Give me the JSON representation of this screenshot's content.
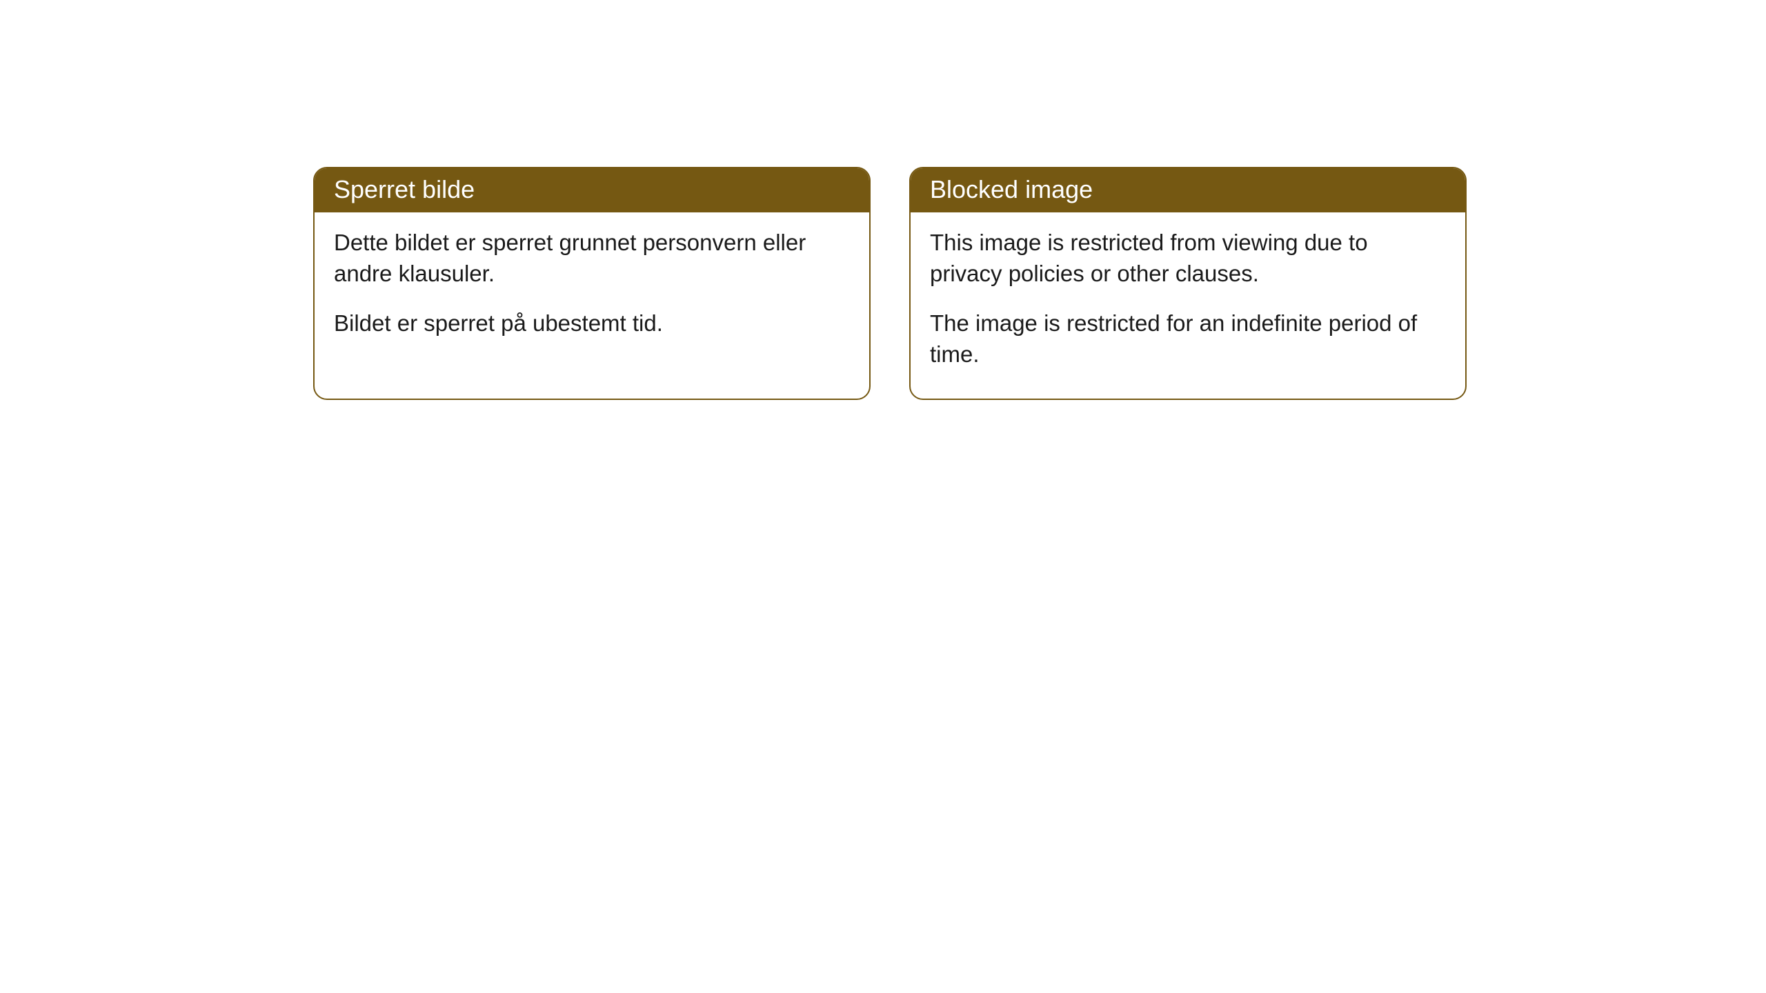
{
  "cards": [
    {
      "title": "Sperret bilde",
      "paragraph1": "Dette bildet er sperret grunnet personvern eller andre klausuler.",
      "paragraph2": "Bildet er sperret på ubestemt tid."
    },
    {
      "title": "Blocked image",
      "paragraph1": "This image is restricted from viewing due to privacy policies or other clauses.",
      "paragraph2": "The image is restricted for an indefinite period of time."
    }
  ],
  "styling": {
    "header_background": "#755812",
    "header_text_color": "#ffffff",
    "border_color": "#755812",
    "body_text_color": "#1a1a1a",
    "card_background": "#ffffff",
    "page_background": "#ffffff",
    "border_radius": 20,
    "title_fontsize": 36,
    "body_fontsize": 33
  }
}
